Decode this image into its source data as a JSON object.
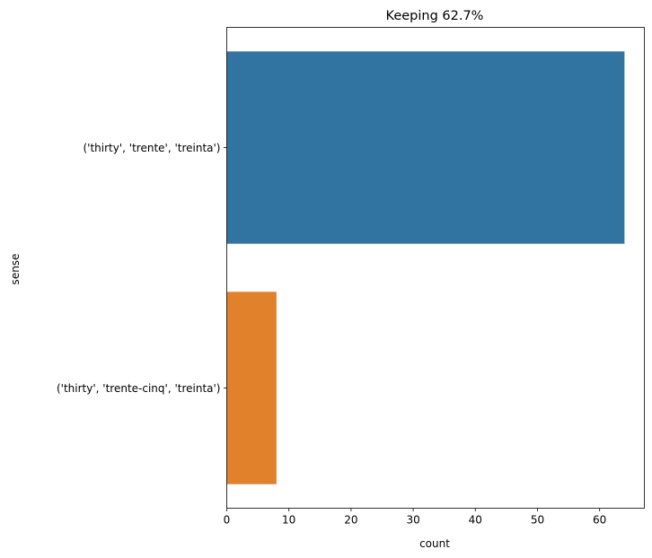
{
  "chart_data": {
    "type": "bar",
    "orientation": "horizontal",
    "title": "Keeping 62.7%",
    "xlabel": "count",
    "ylabel": "sense",
    "categories": [
      "('thirty', 'trente', 'treinta')",
      "('thirty', 'trente-cinq', 'treinta')"
    ],
    "values": [
      64,
      8
    ],
    "colors": [
      "#3274a1",
      "#e1812c"
    ],
    "xlim": [
      0,
      67.2
    ],
    "xticks": [
      0,
      10,
      20,
      30,
      40,
      50,
      60
    ],
    "grid": false,
    "legend": "none"
  }
}
